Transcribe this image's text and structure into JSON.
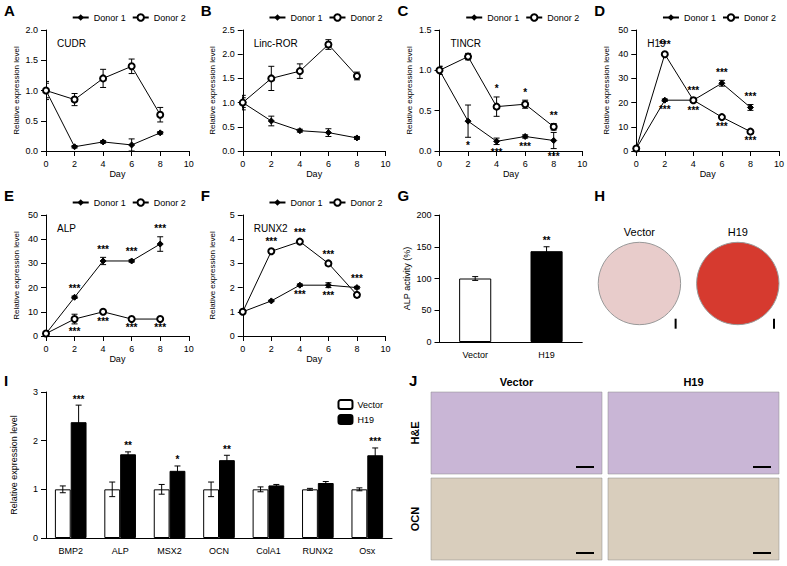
{
  "chart_data": [
    {
      "type": "line",
      "panel": "A",
      "title": "CUDR",
      "x_label": "Day",
      "y_label": "Relative expression level",
      "x": [
        0,
        2,
        4,
        6,
        8
      ],
      "xlim": [
        0,
        10
      ],
      "xticks": [
        0,
        2,
        4,
        6,
        8,
        10
      ],
      "ylim": [
        0,
        2
      ],
      "yticks": [
        {
          "value": 0,
          "label": "0.0"
        },
        0.5,
        {
          "value": 1,
          "label": "1.0"
        },
        1.5,
        {
          "value": 2,
          "label": "2.0"
        }
      ],
      "grid": false,
      "legend": "upper right",
      "series": [
        {
          "name": "Donor 1",
          "color": "#000000",
          "marker": "diamond",
          "line_style": "solid",
          "values": [
            1,
            0.07,
            0.15,
            0.1,
            0.3
          ],
          "errors": [
            0.12,
            0.02,
            0.02,
            0.1,
            0.02
          ]
        },
        {
          "name": "Donor 2",
          "color": "#000000",
          "marker": "open_circle",
          "line_style": "solid",
          "values": [
            1,
            0.85,
            1.2,
            1.4,
            0.6
          ],
          "errors": [
            0.15,
            0.1,
            0.15,
            0.12,
            0.12
          ]
        }
      ]
    },
    {
      "type": "line",
      "panel": "B",
      "title": "Linc-ROR",
      "x_label": "Day",
      "y_label": "Relative expression level",
      "x": [
        0,
        2,
        4,
        6,
        8
      ],
      "xlim": [
        0,
        10
      ],
      "xticks": [
        0,
        2,
        4,
        6,
        8,
        10
      ],
      "ylim": [
        0,
        2.5
      ],
      "yticks": [
        {
          "value": 0,
          "label": "0.0"
        },
        0.5,
        {
          "value": 1,
          "label": "1.0"
        },
        1.5,
        {
          "value": 2,
          "label": "2.0"
        },
        2.5
      ],
      "grid": false,
      "legend": "upper right",
      "series": [
        {
          "name": "Donor 1",
          "color": "#000000",
          "marker": "diamond",
          "line_style": "solid",
          "values": [
            1,
            0.62,
            0.42,
            0.38,
            0.27
          ],
          "errors": [
            0.1,
            0.1,
            0.03,
            0.08,
            0.03
          ]
        },
        {
          "name": "Donor 2",
          "color": "#000000",
          "marker": "open_circle",
          "line_style": "solid",
          "values": [
            1,
            1.5,
            1.65,
            2.2,
            1.55
          ],
          "errors": [
            0.15,
            0.25,
            0.15,
            0.1,
            0.08
          ]
        }
      ]
    },
    {
      "type": "line",
      "panel": "C",
      "title": "TINCR",
      "x_label": "Day",
      "y_label": "Relative expression level",
      "x": [
        0,
        2,
        4,
        6,
        8
      ],
      "xlim": [
        0,
        10
      ],
      "xticks": [
        0,
        2,
        4,
        6,
        8,
        10
      ],
      "ylim": [
        0,
        1.5
      ],
      "yticks": [
        {
          "value": 0,
          "label": "0.0"
        },
        0.5,
        {
          "value": 1,
          "label": "1.0"
        },
        1.5
      ],
      "grid": false,
      "legend": "upper right",
      "series": [
        {
          "name": "Donor 1",
          "color": "#000000",
          "marker": "diamond",
          "line_style": "solid",
          "values": [
            1,
            0.37,
            0.12,
            0.18,
            0.13
          ],
          "errors": [
            0.05,
            0.2,
            0.04,
            0.02,
            0.1
          ],
          "significance": [
            null,
            "*",
            "***",
            "***",
            "***"
          ]
        },
        {
          "name": "Donor 2",
          "color": "#000000",
          "marker": "open_circle",
          "line_style": "solid",
          "values": [
            1,
            1.17,
            0.55,
            0.58,
            0.3
          ],
          "errors": [
            0.05,
            0.04,
            0.12,
            0.05,
            0.04
          ],
          "significance": [
            null,
            null,
            "*",
            "*",
            "**"
          ]
        }
      ]
    },
    {
      "type": "line",
      "panel": "D",
      "title": "H19",
      "x_label": "Day",
      "y_label": "Relative expression level",
      "x": [
        0,
        2,
        4,
        6,
        8
      ],
      "xlim": [
        0,
        10
      ],
      "xticks": [
        0,
        2,
        4,
        6,
        8,
        10
      ],
      "ylim": [
        0,
        50
      ],
      "yticks": [
        0,
        10,
        20,
        30,
        40,
        50
      ],
      "grid": false,
      "legend": "upper right",
      "series": [
        {
          "name": "Donor 1",
          "color": "#000000",
          "marker": "diamond",
          "line_style": "solid",
          "values": [
            1,
            21,
            21,
            28,
            18
          ],
          "errors": [
            0.3,
            0.5,
            0.8,
            1.2,
            1.2
          ],
          "significance": [
            null,
            "***",
            "***",
            "***",
            "***"
          ]
        },
        {
          "name": "Donor 2",
          "color": "#000000",
          "marker": "open_circle",
          "line_style": "solid",
          "values": [
            1,
            40,
            21,
            14,
            8
          ],
          "errors": [
            0.3,
            0.5,
            1,
            0.5,
            0.5
          ],
          "significance": [
            null,
            "***",
            "***",
            "***",
            "***"
          ]
        }
      ]
    },
    {
      "type": "line",
      "panel": "E",
      "title": "ALP",
      "x_label": "Day",
      "y_label": "Relative expression level",
      "x": [
        0,
        2,
        4,
        6,
        8
      ],
      "xlim": [
        0,
        10
      ],
      "xticks": [
        0,
        2,
        4,
        6,
        8,
        10
      ],
      "ylim": [
        0,
        50
      ],
      "yticks": [
        0,
        10,
        20,
        30,
        40,
        50
      ],
      "grid": false,
      "legend": "upper right",
      "series": [
        {
          "name": "Donor 1",
          "color": "#000000",
          "marker": "diamond",
          "line_style": "solid",
          "values": [
            1,
            16,
            31,
            31,
            38
          ],
          "errors": [
            0.3,
            0.5,
            1.5,
            0.5,
            3
          ],
          "significance": [
            null,
            "***",
            "***",
            "***",
            "***"
          ]
        },
        {
          "name": "Donor 2",
          "color": "#000000",
          "marker": "open_circle",
          "line_style": "solid",
          "values": [
            1,
            7,
            10,
            7,
            7
          ],
          "errors": [
            0.3,
            2,
            0.5,
            0.3,
            0.3
          ],
          "significance": [
            null,
            "***",
            "***",
            "***",
            "***"
          ]
        }
      ]
    },
    {
      "type": "line",
      "panel": "F",
      "title": "RUNX2",
      "x_label": "Day",
      "y_label": "Relative expression level",
      "x": [
        0,
        2,
        4,
        6,
        8
      ],
      "xlim": [
        0,
        10
      ],
      "xticks": [
        0,
        2,
        4,
        6,
        8,
        10
      ],
      "ylim": [
        0,
        5
      ],
      "yticks": [
        0,
        1,
        2,
        3,
        4,
        5
      ],
      "grid": false,
      "legend": "upper right",
      "series": [
        {
          "name": "Donor 1",
          "color": "#000000",
          "marker": "diamond",
          "line_style": "solid",
          "values": [
            1,
            1.45,
            2.1,
            2.1,
            2.0
          ],
          "errors": [
            0.05,
            0.03,
            0.05,
            0.1,
            0.05
          ],
          "significance": [
            null,
            null,
            "***",
            "***",
            "***"
          ]
        },
        {
          "name": "Donor 2",
          "color": "#000000",
          "marker": "open_circle",
          "line_style": "solid",
          "values": [
            1,
            3.5,
            3.9,
            3.0,
            1.7
          ],
          "errors": [
            0.05,
            0.08,
            0.05,
            0.05,
            0.1
          ],
          "significance": [
            null,
            "***",
            "***",
            "***",
            null
          ]
        }
      ]
    },
    {
      "type": "bar",
      "panel": "G",
      "y_label": "ALP activity (%)",
      "categories": [
        "Vector",
        "H19"
      ],
      "values": [
        100,
        143
      ],
      "errors": [
        3,
        7
      ],
      "significance": [
        null,
        "**"
      ],
      "colors": [
        "#ffffff",
        "#000000"
      ],
      "ylim": [
        0,
        200
      ],
      "yticks": [
        0,
        50,
        100,
        150,
        200
      ],
      "grid": false
    },
    {
      "type": "image",
      "panel": "H",
      "categories": [
        "Vector",
        "H19"
      ],
      "colors": [
        "#e8cccb",
        "#d63a2f"
      ]
    },
    {
      "type": "bar",
      "panel": "I",
      "y_label": "Relative expression level",
      "categories": [
        "BMP2",
        "ALP",
        "MSX2",
        "OCN",
        "ColA1",
        "RUNX2",
        "Osx"
      ],
      "ylim": [
        0,
        3
      ],
      "yticks": [
        0,
        1,
        2,
        3
      ],
      "grid": false,
      "legend": "upper right",
      "series": [
        {
          "name": "Vector",
          "color": "#ffffff",
          "values": [
            1,
            1,
            1,
            1,
            1,
            1,
            1
          ],
          "errors": [
            0.07,
            0.15,
            0.1,
            0.15,
            0.05,
            0.02,
            0.03
          ]
        },
        {
          "name": "H19",
          "color": "#000000",
          "values": [
            2.38,
            1.72,
            1.38,
            1.6,
            1.08,
            1.13,
            1.7
          ],
          "errors": [
            0.35,
            0.05,
            0.1,
            0.1,
            0.02,
            0.03,
            0.15
          ],
          "significance": [
            "***",
            "**",
            "*",
            "**",
            null,
            null,
            "***"
          ]
        }
      ]
    },
    {
      "type": "image",
      "panel": "J",
      "columns": [
        "Vector",
        "H19"
      ],
      "rows": [
        "H&E",
        "OCN"
      ],
      "colors": [
        "#c9b6d6",
        "#d9cebd"
      ]
    }
  ]
}
